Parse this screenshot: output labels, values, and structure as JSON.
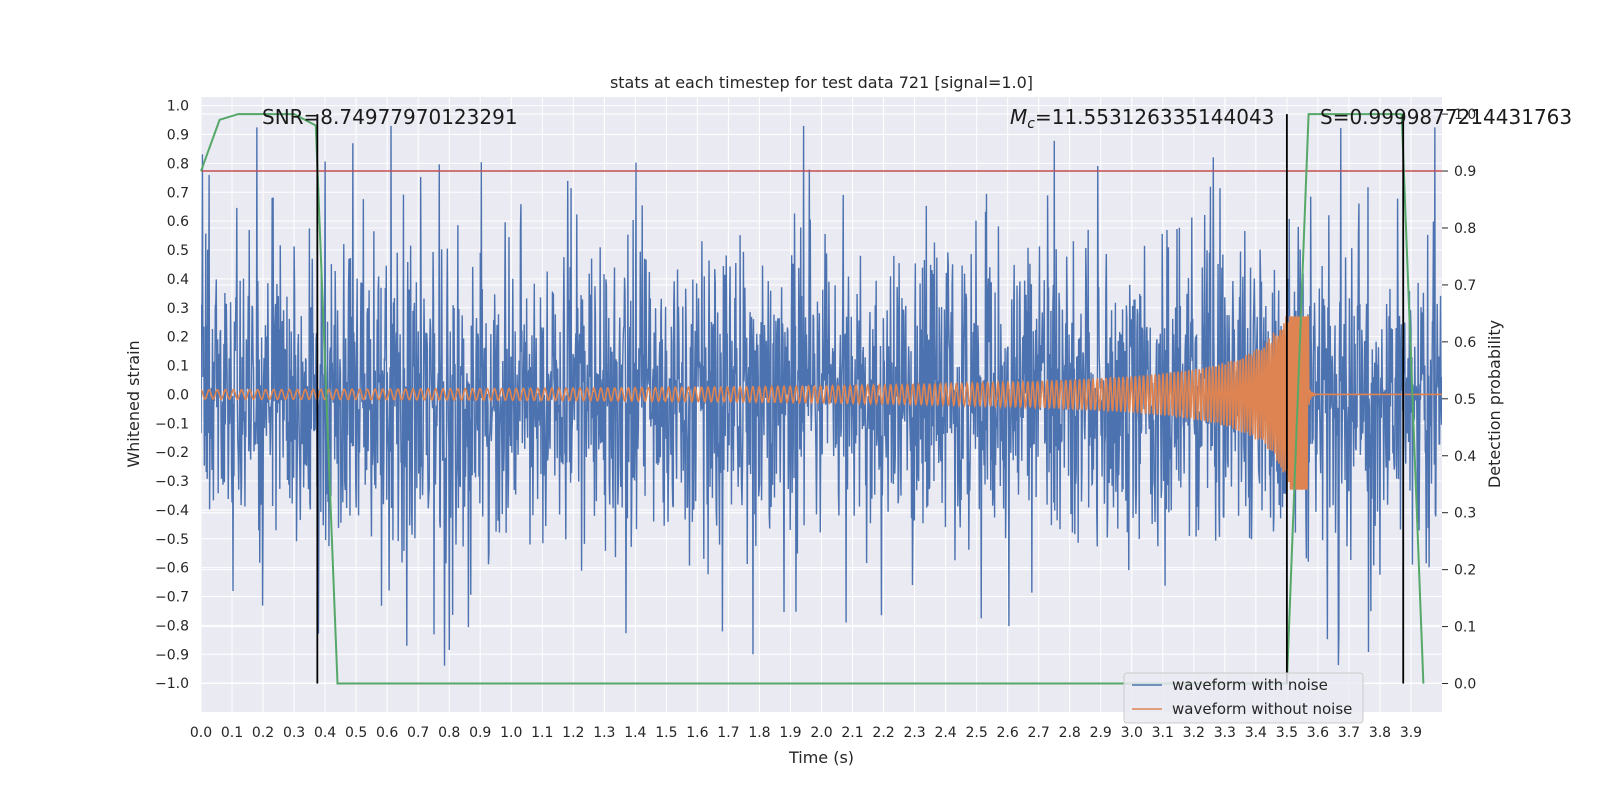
{
  "chart_data": {
    "type": "line",
    "title": "stats at each timestep for test data 721 [signal=1.0]",
    "xlabel": "Time (s)",
    "ylabel": "Whitened strain",
    "y2label": "Detection probability",
    "xlim": [
      0.0,
      4.0
    ],
    "ylim": [
      -1.1,
      1.03
    ],
    "y2lim": [
      -0.05,
      1.03
    ],
    "x_ticks": [
      "0.0",
      "0.1",
      "0.2",
      "0.3",
      "0.4",
      "0.5",
      "0.6",
      "0.7",
      "0.8",
      "0.9",
      "1.0",
      "1.1",
      "1.2",
      "1.3",
      "1.4",
      "1.5",
      "1.6",
      "1.7",
      "1.8",
      "1.9",
      "2.0",
      "2.1",
      "2.2",
      "2.3",
      "2.4",
      "2.5",
      "2.6",
      "2.7",
      "2.8",
      "2.9",
      "3.0",
      "3.1",
      "3.2",
      "3.3",
      "3.4",
      "3.5",
      "3.6",
      "3.7",
      "3.8",
      "3.9"
    ],
    "y_ticks": [
      "1.0",
      "0.9",
      "0.8",
      "0.7",
      "0.6",
      "0.5",
      "0.4",
      "0.3",
      "0.2",
      "0.1",
      "0.0",
      "-0.1",
      "-0.2",
      "-0.3",
      "-0.4",
      "-0.5",
      "-0.6",
      "-0.7",
      "-0.8",
      "-0.9",
      "-1.0"
    ],
    "y2_ticks": [
      "1.0",
      "0.9",
      "0.8",
      "0.7",
      "0.6",
      "0.5",
      "0.4",
      "0.3",
      "0.2",
      "0.1",
      "0.0"
    ],
    "grid": true,
    "legend_position": "lower-right",
    "series": [
      {
        "name": "waveform with noise",
        "color": "#4c72b0",
        "axis": "left",
        "kind": "noise",
        "amplitude_range": [
          -1.0,
          0.93
        ]
      },
      {
        "name": "waveform without noise",
        "color": "#dd8452",
        "axis": "left",
        "kind": "chirp",
        "merger_time": 3.57,
        "amplitude_range": [
          -0.33,
          0.27
        ]
      },
      {
        "name": "",
        "color": "#55a868",
        "axis": "right",
        "x": [
          0.0,
          0.06,
          0.12,
          0.18,
          0.24,
          0.3,
          0.37,
          0.44,
          0.5,
          1.0,
          1.5,
          2.0,
          2.5,
          3.0,
          3.4,
          3.5,
          3.57,
          3.64,
          3.7,
          3.8,
          3.87,
          3.94
        ],
        "y": [
          0.9,
          0.99,
          1.0,
          1.0,
          1.0,
          1.0,
          0.98,
          0.0,
          0.0,
          0.0,
          0.0,
          0.0,
          0.0,
          0.0,
          0.0,
          0.0,
          1.0,
          1.0,
          1.0,
          1.0,
          1.0,
          0.0
        ]
      }
    ],
    "threshold": {
      "value": 0.9,
      "axis": "right",
      "color": "#c44e52"
    },
    "vertical_lines": [
      0.375,
      3.5,
      3.875
    ],
    "annotations": [
      {
        "text": "SNR=8.74977970123291",
        "x": 0.2,
        "y": 0.95
      },
      {
        "text_main": "M",
        "text_sub": "c",
        "text_rest": "=11.553126335144043",
        "x": 2.6,
        "y": 0.95
      },
      {
        "text": "S=0.9999877214431763",
        "x": 3.6,
        "y": 0.95
      }
    ]
  }
}
